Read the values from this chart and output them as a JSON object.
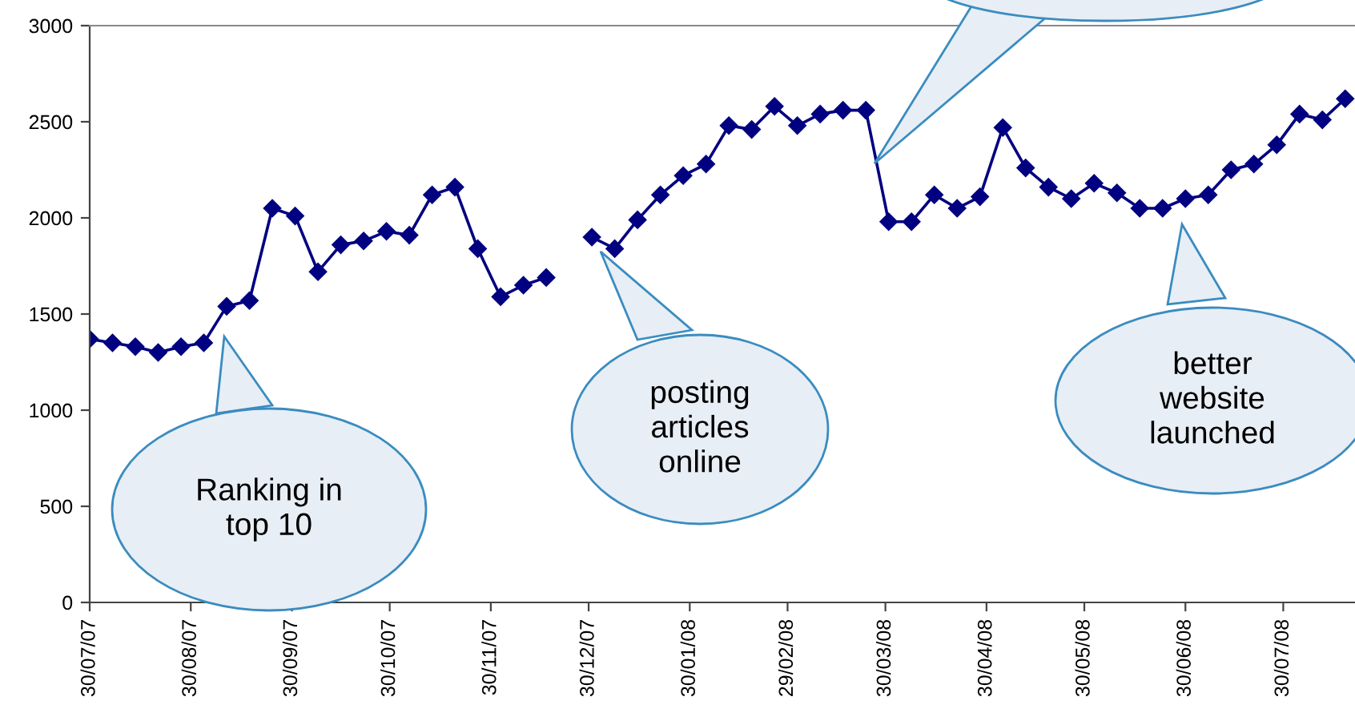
{
  "chart_data": {
    "type": "line",
    "x": [
      "2007-07-30",
      "2007-08-06",
      "2007-08-13",
      "2007-08-20",
      "2007-08-27",
      "2007-09-03",
      "2007-09-10",
      "2007-09-17",
      "2007-09-24",
      "2007-10-01",
      "2007-10-08",
      "2007-10-15",
      "2007-10-22",
      "2007-10-29",
      "2007-11-05",
      "2007-11-12",
      "2007-11-19",
      "2007-11-26",
      "2007-12-03",
      "2007-12-10",
      "2007-12-17",
      "2007-12-24",
      "2007-12-31",
      "2008-01-07",
      "2008-01-14",
      "2008-01-21",
      "2008-01-28",
      "2008-02-04",
      "2008-02-11",
      "2008-02-18",
      "2008-02-25",
      "2008-03-03",
      "2008-03-10",
      "2008-03-17",
      "2008-03-24",
      "2008-03-31",
      "2008-04-07",
      "2008-04-14",
      "2008-04-21",
      "2008-04-28",
      "2008-05-05",
      "2008-05-12",
      "2008-05-19",
      "2008-05-26",
      "2008-06-02",
      "2008-06-09",
      "2008-06-16",
      "2008-06-23",
      "2008-06-30",
      "2008-07-07",
      "2008-07-14",
      "2008-07-21",
      "2008-07-28",
      "2008-08-04",
      "2008-08-11",
      "2008-08-18"
    ],
    "series": [
      {
        "color": "#000080",
        "values": [
          1370,
          1350,
          1330,
          1300,
          1330,
          1350,
          1540,
          1570,
          2050,
          2010,
          1720,
          1860,
          1880,
          1930,
          1910,
          2120,
          2160,
          1840,
          1590,
          1650,
          1690,
          null,
          1900,
          1840,
          1990,
          2120,
          2220,
          2280,
          2480,
          2460,
          2580,
          2480,
          2540,
          2560,
          2560,
          1980,
          1980,
          2120,
          2050,
          2110,
          2470,
          2260,
          2160,
          2100,
          2180,
          2130,
          2050,
          2050,
          2100,
          2120,
          2250,
          2280,
          2380,
          2540,
          2510,
          2620
        ]
      }
    ],
    "marker": "diamond",
    "line_style": "solid",
    "grid": false,
    "xlim": [
      "2007-07-30",
      "2008-08-21"
    ],
    "xticks": [
      {
        "value": "2007-07-30",
        "label": "30/07/07"
      },
      {
        "value": "2007-08-30",
        "label": "30/08/07"
      },
      {
        "value": "2007-09-30",
        "label": "30/09/07"
      },
      {
        "value": "2007-10-30",
        "label": "30/10/07"
      },
      {
        "value": "2007-11-30",
        "label": "30/11/07"
      },
      {
        "value": "2007-12-30",
        "label": "30/12/07"
      },
      {
        "value": "2008-01-30",
        "label": "30/01/08"
      },
      {
        "value": "2008-02-29",
        "label": "29/02/08"
      },
      {
        "value": "2008-03-30",
        "label": "30/03/08"
      },
      {
        "value": "2008-04-30",
        "label": "30/04/08"
      },
      {
        "value": "2008-05-30",
        "label": "30/05/08"
      },
      {
        "value": "2008-06-30",
        "label": "30/06/08"
      },
      {
        "value": "2008-07-30",
        "label": "30/07/08"
      }
    ],
    "ylim": [
      0,
      3000
    ],
    "yticks": [
      0,
      500,
      1000,
      1500,
      2000,
      2500,
      3000
    ],
    "annotations": [
      "Ranking in\ntop 10",
      "posting\narticles\nonline",
      "better\nwebsite\nlaunched"
    ]
  }
}
